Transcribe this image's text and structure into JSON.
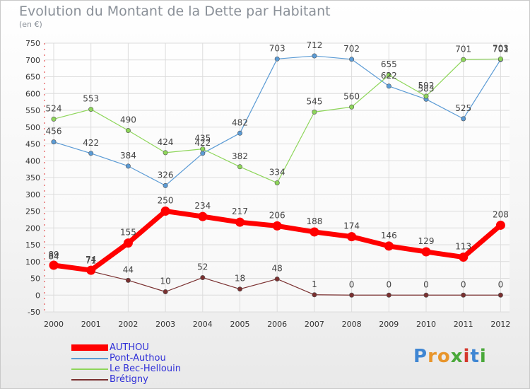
{
  "chart_data": {
    "type": "line",
    "title": "Evolution du Montant de la Dette par Habitant",
    "subtitle": "(en €)",
    "x": [
      "2000",
      "2001",
      "2002",
      "2003",
      "2004",
      "2005",
      "2006",
      "2007",
      "2008",
      "2009",
      "2010",
      "2011",
      "2012"
    ],
    "ylim": [
      -50,
      750
    ],
    "yticks": [
      -50,
      0,
      50,
      100,
      150,
      200,
      250,
      300,
      350,
      400,
      450,
      500,
      550,
      600,
      650,
      700,
      750
    ],
    "grid": true,
    "legend_position": "bottom-left",
    "series": [
      {
        "name": "AUTHOU",
        "color": "#ff0000",
        "values": [
          89,
          74,
          155,
          250,
          234,
          217,
          206,
          188,
          174,
          146,
          129,
          113,
          208
        ]
      },
      {
        "name": "Pont-Authou",
        "color": "#5b9bd5",
        "values": [
          456,
          422,
          384,
          326,
          422,
          482,
          703,
          712,
          702,
          622,
          583,
          525,
          701
        ]
      },
      {
        "name": "Le Bec-Hellouin",
        "color": "#8ed65a",
        "values": [
          524,
          553,
          490,
          424,
          435,
          382,
          334,
          545,
          560,
          655,
          592,
          701,
          703
        ]
      },
      {
        "name": "Brétigny",
        "color": "#7a3030",
        "values": [
          84,
          71,
          44,
          10,
          52,
          18,
          48,
          1,
          0,
          0,
          0,
          0,
          0
        ]
      }
    ]
  },
  "logo": {
    "text": "Proxiti",
    "letters": [
      "P",
      "r",
      "o",
      "x",
      "i",
      "t",
      "i"
    ],
    "colors": [
      "#3f86d3",
      "#e8952b",
      "#e8952b",
      "#4aa83a",
      "#d4372c",
      "#3f86d3",
      "#4aa83a"
    ]
  }
}
